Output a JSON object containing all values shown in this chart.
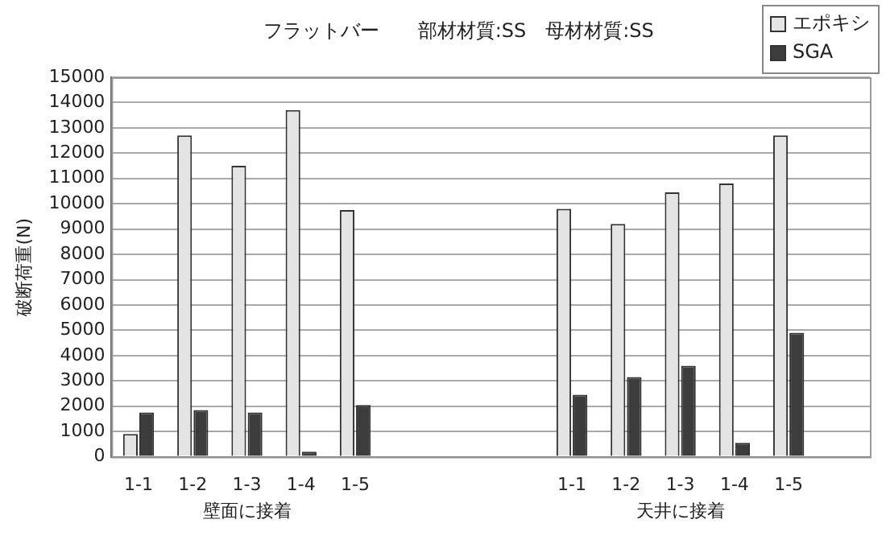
{
  "chart_data": {
    "type": "bar",
    "title": "フラットバー　　部材材質:SS　母材材質:SS",
    "ylabel": "破断荷重(N)",
    "categories": [
      "1-1",
      "1-2",
      "1-3",
      "1-4",
      "1-5",
      null,
      null,
      null,
      "1-1",
      "1-2",
      "1-3",
      "1-4",
      "1-5",
      null
    ],
    "series": [
      {
        "name": "エポキシ",
        "color": "#e4e4e4",
        "values": [
          900,
          12700,
          11500,
          13700,
          9750,
          null,
          null,
          null,
          9800,
          9200,
          10450,
          10800,
          12700,
          null
        ]
      },
      {
        "name": "SGA",
        "color": "#3c3c3c",
        "values": [
          1750,
          1850,
          1750,
          200,
          2050,
          null,
          null,
          null,
          2450,
          3150,
          3600,
          550,
          4900,
          null
        ]
      }
    ],
    "ylim": [
      0,
      15000
    ],
    "yticks": [
      0,
      1000,
      2000,
      3000,
      4000,
      5000,
      6000,
      7000,
      8000,
      9000,
      10000,
      11000,
      12000,
      13000,
      14000,
      15000
    ],
    "grid": "y",
    "legend": "top right",
    "annotations": [
      "壁面に接着",
      "天井に接着"
    ]
  }
}
